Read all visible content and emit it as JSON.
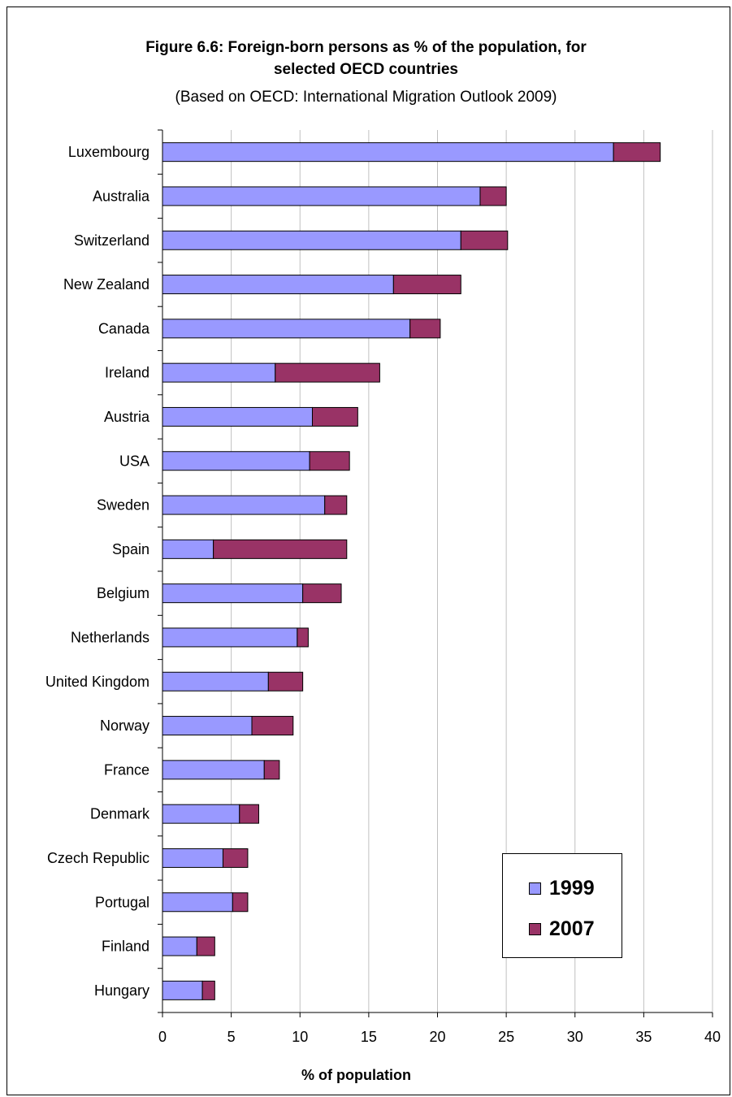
{
  "chart_data": {
    "type": "bar",
    "orientation": "horizontal",
    "stacked": true,
    "title": "Figure 6.6: Foreign-born persons as % of the population, for selected OECD countries",
    "title_lines": [
      "Figure 6.6: Foreign-born persons as % of the population, for",
      "selected OECD countries"
    ],
    "subtitle": "(Based on OECD: International Migration Outlook 2009)",
    "xlabel": "% of population",
    "ylabel": "",
    "xlim": [
      0,
      40
    ],
    "xticks": [
      0,
      5,
      10,
      15,
      20,
      25,
      30,
      35,
      40
    ],
    "grid": "vertical",
    "legend_position": "bottom-right",
    "categories": [
      "Luxembourg",
      "Australia",
      "Switzerland",
      "New Zealand",
      "Canada",
      "Ireland",
      "Austria",
      "USA",
      "Sweden",
      "Spain",
      "Belgium",
      "Netherlands",
      "United Kingdom",
      "Norway",
      "France",
      "Denmark",
      "Czech Republic",
      "Portugal",
      "Finland",
      "Hungary"
    ],
    "series": [
      {
        "name": "1999",
        "color": "#9999ff",
        "values": [
          32.8,
          23.1,
          21.7,
          16.8,
          18.0,
          8.2,
          10.9,
          10.7,
          11.8,
          3.7,
          10.2,
          9.8,
          7.7,
          6.5,
          7.4,
          5.6,
          4.4,
          5.1,
          2.5,
          2.9
        ]
      },
      {
        "name": "2007",
        "color": "#993366",
        "values": [
          3.4,
          1.9,
          3.4,
          4.9,
          2.2,
          7.6,
          3.3,
          2.9,
          1.6,
          9.7,
          2.8,
          0.8,
          2.5,
          3.0,
          1.1,
          1.4,
          1.8,
          1.1,
          1.3,
          0.9
        ]
      }
    ]
  }
}
